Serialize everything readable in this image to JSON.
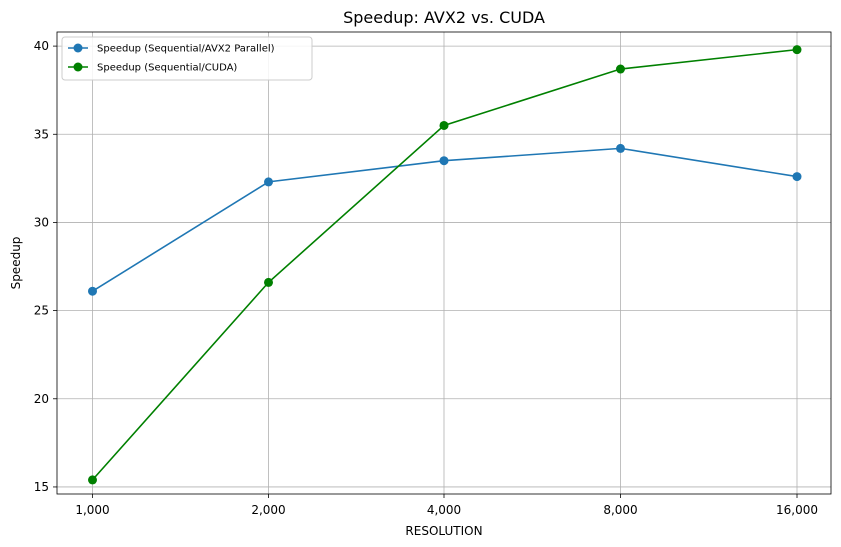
{
  "chart_data": {
    "type": "line",
    "title": "Speedup: AVX2 vs. CUDA",
    "xlabel": "RESOLUTION",
    "ylabel": "Speedup",
    "categories": [
      "1,000",
      "2,000",
      "4,000",
      "8,000",
      "16,000"
    ],
    "y_ticks": [
      "15",
      "20",
      "25",
      "30",
      "35",
      "40"
    ],
    "ylim": [
      14.6,
      40.8
    ],
    "grid": true,
    "legend_position": "top-left",
    "series": [
      {
        "name": "Speedup (Sequential/AVX2 Parallel)",
        "color": "#1f77b4",
        "marker": "circle",
        "values": [
          26.1,
          32.3,
          33.5,
          34.2,
          32.6
        ]
      },
      {
        "name": "Speedup (Sequential/CUDA)",
        "color": "#008000",
        "marker": "circle",
        "values": [
          15.4,
          26.6,
          35.5,
          38.7,
          39.8
        ]
      }
    ]
  }
}
